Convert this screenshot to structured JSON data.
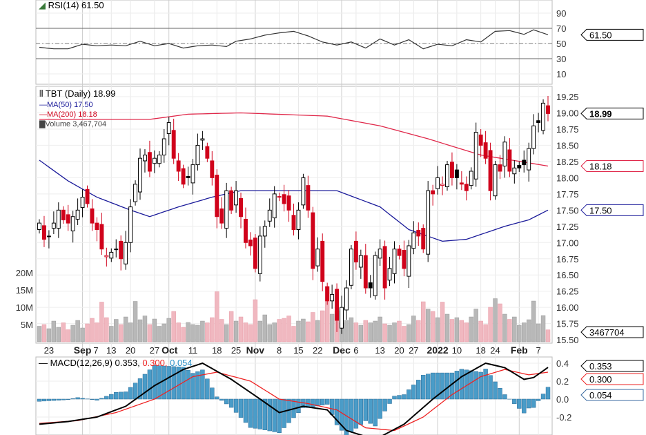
{
  "rsi_panel": {
    "label": "RSI(14) 61.50",
    "value": "61.50",
    "ticks": [
      90,
      70,
      50,
      30,
      10
    ]
  },
  "price_panel": {
    "title": "TBT (Daily) 18.99",
    "last": "18.99",
    "ma50_label": "MA(50) 17.50",
    "ma50_value": "17.50",
    "ma200_label": "MA(200) 18.18",
    "ma200_value": "18.18",
    "volume_label": "Volume 3,467,704",
    "volume_value": "3467704",
    "ticks": [
      "19.25",
      "19.00",
      "18.75",
      "18.50",
      "18.25",
      "18.00",
      "17.75",
      "17.50",
      "17.25",
      "17.00",
      "16.75",
      "16.50",
      "16.25",
      "16.00",
      "15.75",
      "15.50"
    ],
    "volume_ticks": [
      "20M",
      "15M",
      "10M",
      "5M"
    ]
  },
  "macd_panel": {
    "label_main": "MACD(12,26,9) 0.353,",
    "label_signal": "0.300,",
    "label_hist": "0.054",
    "macd_value": "0.353",
    "signal_value": "0.300",
    "hist_value": "0.054",
    "ticks": [
      "0.4",
      "0.2",
      "0.0",
      "-0.2"
    ]
  },
  "colors": {
    "up": "#000000",
    "down": "#d0021b",
    "ma50": "#1a1a9a",
    "ma200": "#e0284a",
    "vol_up": "#b8b8b8",
    "vol_down": "#f0b8c0",
    "hist": "#4a9cc8",
    "signal": "#ee2222"
  },
  "chart_data": {
    "type": "candlestick",
    "title": "TBT (Daily)",
    "close": [
      17.3,
      17.05,
      17.1,
      17.3,
      17.5,
      17.35,
      17.3,
      17.4,
      17.5,
      17.7,
      17.6,
      17.3,
      17.2,
      16.9,
      16.8,
      16.85,
      16.9,
      16.75,
      17.0,
      17.55,
      17.9,
      18.3,
      18.35,
      18.1,
      18.3,
      18.35,
      18.6,
      18.85,
      18.3,
      18.1,
      17.9,
      18.0,
      18.2,
      18.5,
      18.6,
      18.3,
      18.0,
      17.4,
      17.3,
      17.8,
      17.5,
      17.8,
      17.4,
      17.0,
      16.95,
      16.6,
      17.1,
      17.25,
      17.5,
      17.75,
      17.7,
      17.6,
      17.5,
      17.2,
      17.5,
      18.0,
      17.5,
      16.6,
      16.9,
      16.4,
      16.1,
      16.2,
      15.8,
      16.0,
      16.3,
      16.9,
      16.7,
      16.8,
      16.3,
      16.3,
      16.8,
      16.9,
      16.3,
      16.6,
      16.9,
      16.8,
      16.6,
      16.95,
      17.15,
      17.1,
      16.9,
      17.8,
      17.75,
      18.0,
      17.9,
      18.2,
      18.0,
      18.0,
      17.9,
      17.8,
      18.1,
      18.7,
      18.5,
      18.3,
      17.8,
      18.2,
      18.1,
      18.55,
      18.1,
      18.15,
      18.15,
      18.2,
      18.45,
      18.8,
      18.85,
      19.15,
      18.99
    ],
    "volume_millions": [
      4.5,
      5,
      3.8,
      6,
      4.2,
      5.5,
      3.5,
      4.8,
      6.2,
      4,
      5.2,
      6.8,
      5.5,
      11.5,
      7,
      4.5,
      6.5,
      5,
      7.2,
      5.5,
      11.7,
      6.4,
      7.5,
      5,
      6.6,
      4.5,
      5.2,
      6.8,
      8.8,
      5.5,
      4.2,
      5.6,
      5,
      4.8,
      6,
      5.5,
      7,
      14.5,
      6.5,
      5,
      8.8,
      6,
      7.2,
      5.5,
      5,
      12.2,
      6,
      7.8,
      5,
      5.5,
      6.5,
      6.8,
      7.5,
      4.5,
      6,
      6.6,
      5.8,
      8.5,
      6.2,
      9,
      16,
      8,
      9,
      5.5,
      6.2,
      7,
      5.5,
      4.8,
      6.2,
      5.5,
      6,
      7.2,
      5.2,
      4.8,
      5.5,
      6,
      4.5,
      5,
      7.5,
      6.2,
      11.6,
      9.5,
      8.8,
      7,
      11.5,
      8,
      6.5,
      7,
      6.2,
      5.5,
      7.2,
      9.5,
      6,
      5,
      10,
      12.5,
      11,
      8,
      6.5,
      7.2,
      4.8,
      5.5,
      6.4,
      11.8,
      5.2,
      7.6,
      3.47
    ],
    "ma50": [
      [
        0,
        18.27
      ],
      [
        6,
        17.95
      ],
      [
        12,
        17.7
      ],
      [
        19,
        17.5
      ],
      [
        23,
        17.4
      ],
      [
        29,
        17.55
      ],
      [
        36,
        17.7
      ],
      [
        42,
        17.8
      ],
      [
        52,
        17.8
      ],
      [
        62,
        17.8
      ],
      [
        71,
        17.55
      ],
      [
        77,
        17.2
      ],
      [
        84,
        17.02
      ],
      [
        89,
        17.05
      ],
      [
        97,
        17.25
      ],
      [
        102,
        17.35
      ],
      [
        106,
        17.5
      ]
    ],
    "ma200": [
      [
        0,
        18.9
      ],
      [
        23,
        18.9
      ],
      [
        31,
        18.98
      ],
      [
        42,
        19.0
      ],
      [
        60,
        18.95
      ],
      [
        71,
        18.8
      ],
      [
        81,
        18.6
      ],
      [
        92,
        18.35
      ],
      [
        106,
        18.18
      ]
    ],
    "rsi": [
      [
        0,
        45
      ],
      [
        3,
        43
      ],
      [
        6,
        43
      ],
      [
        9,
        49
      ],
      [
        12,
        47
      ],
      [
        15,
        48
      ],
      [
        18,
        47
      ],
      [
        21,
        53
      ],
      [
        24,
        47
      ],
      [
        27,
        50
      ],
      [
        30,
        44
      ],
      [
        33,
        47
      ],
      [
        36,
        48
      ],
      [
        39,
        46
      ],
      [
        41,
        53
      ],
      [
        44,
        56
      ],
      [
        47,
        61
      ],
      [
        50,
        64
      ],
      [
        53,
        66
      ],
      [
        56,
        60
      ],
      [
        59,
        52
      ],
      [
        62,
        48
      ],
      [
        65,
        52
      ],
      [
        68,
        44
      ],
      [
        71,
        56
      ],
      [
        74,
        48
      ],
      [
        77,
        55
      ],
      [
        80,
        43
      ],
      [
        83,
        49
      ],
      [
        86,
        47
      ],
      [
        89,
        55
      ],
      [
        92,
        52
      ],
      [
        95,
        66
      ],
      [
        98,
        67
      ],
      [
        101,
        62
      ],
      [
        103,
        68
      ],
      [
        106,
        61.5
      ]
    ],
    "macd": [
      [
        0,
        -0.28
      ],
      [
        6,
        -0.25
      ],
      [
        12,
        -0.2
      ],
      [
        18,
        -0.08
      ],
      [
        24,
        0.15
      ],
      [
        30,
        0.33
      ],
      [
        34,
        0.4
      ],
      [
        40,
        0.22
      ],
      [
        46,
        0.0
      ],
      [
        50,
        -0.15
      ],
      [
        55,
        -0.08
      ],
      [
        60,
        -0.12
      ],
      [
        64,
        -0.35
      ],
      [
        70,
        -0.45
      ],
      [
        76,
        -0.28
      ],
      [
        82,
        0.0
      ],
      [
        88,
        0.25
      ],
      [
        93,
        0.4
      ],
      [
        97,
        0.35
      ],
      [
        101,
        0.22
      ],
      [
        103,
        0.24
      ],
      [
        106,
        0.353
      ]
    ],
    "signal": [
      [
        0,
        -0.27
      ],
      [
        8,
        -0.24
      ],
      [
        16,
        -0.15
      ],
      [
        24,
        0.0
      ],
      [
        32,
        0.25
      ],
      [
        37,
        0.3
      ],
      [
        44,
        0.2
      ],
      [
        50,
        0.0
      ],
      [
        56,
        -0.05
      ],
      [
        62,
        -0.12
      ],
      [
        68,
        -0.32
      ],
      [
        74,
        -0.35
      ],
      [
        80,
        -0.2
      ],
      [
        86,
        0.05
      ],
      [
        92,
        0.25
      ],
      [
        97,
        0.33
      ],
      [
        102,
        0.27
      ],
      [
        106,
        0.3
      ]
    ],
    "xticks": [
      {
        "i": 2,
        "t": "23"
      },
      {
        "i": 9,
        "t": "Sep",
        "bold": true
      },
      {
        "i": 10.5,
        "t": "7"
      },
      {
        "i": 15,
        "t": "13"
      },
      {
        "i": 19,
        "t": "20"
      },
      {
        "i": 24,
        "t": "27"
      },
      {
        "i": 27,
        "t": "Oct",
        "bold": true
      },
      {
        "i": 32,
        "t": "11"
      },
      {
        "i": 37,
        "t": "18"
      },
      {
        "i": 41,
        "t": "25"
      },
      {
        "i": 45,
        "t": "Nov",
        "bold": true
      },
      {
        "i": 50,
        "t": "8"
      },
      {
        "i": 54,
        "t": "15"
      },
      {
        "i": 58,
        "t": "22"
      },
      {
        "i": 63,
        "t": "Dec",
        "bold": true
      },
      {
        "i": 66,
        "t": "6"
      },
      {
        "i": 71,
        "t": "13"
      },
      {
        "i": 75,
        "t": "20"
      },
      {
        "i": 78,
        "t": "27"
      },
      {
        "i": 83,
        "t": "2022",
        "bold": true
      },
      {
        "i": 87,
        "t": "10"
      },
      {
        "i": 92,
        "t": "18"
      },
      {
        "i": 95,
        "t": "24"
      },
      {
        "i": 100,
        "t": "Feb",
        "bold": true
      },
      {
        "i": 104,
        "t": "7"
      }
    ],
    "price_range": [
      15.5,
      19.25
    ],
    "rsi_range": [
      0,
      100
    ],
    "macd_range": [
      -0.3,
      0.45
    ]
  }
}
